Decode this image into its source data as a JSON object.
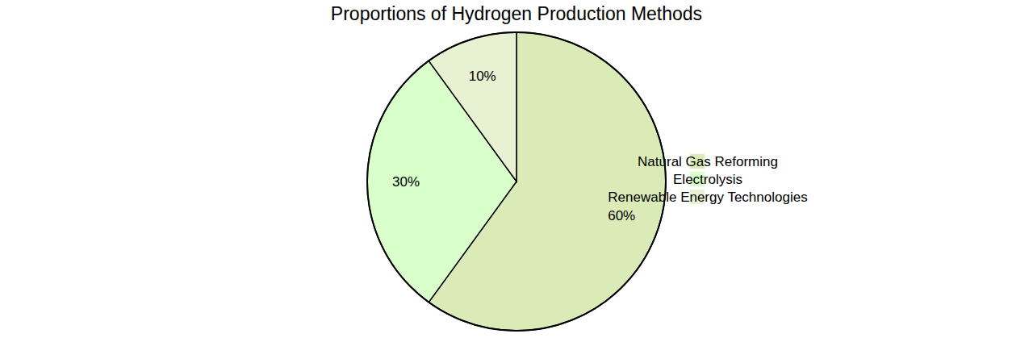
{
  "chart_data": {
    "type": "pie",
    "title": "Proportions of Hydrogen Production Methods",
    "categories": [
      "Natural Gas Reforming",
      "Electrolysis",
      "Renewable Energy Technologies"
    ],
    "values": [
      60,
      30,
      10
    ],
    "value_labels": [
      "60%",
      "30%",
      "10%"
    ],
    "colors": [
      "#dbebb7",
      "#d9ffca",
      "#e8f2d2"
    ],
    "data_labels": true,
    "legend": "right"
  }
}
